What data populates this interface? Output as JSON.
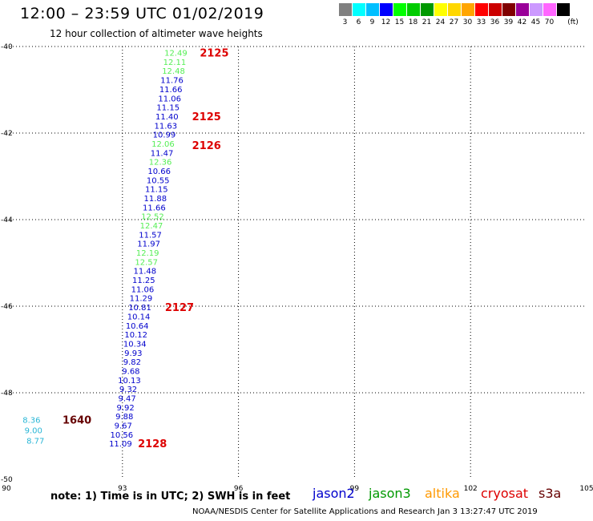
{
  "header": {
    "title": "12:00 – 23:59 UTC 01/02/2019",
    "subtitle": "12 hour collection of altimeter wave heights"
  },
  "color_scale": {
    "unit": "(ft)",
    "bins": [
      {
        "label": "3",
        "color": "#808080"
      },
      {
        "label": "6",
        "color": "#00ffff"
      },
      {
        "label": "9",
        "color": "#00bfff"
      },
      {
        "label": "12",
        "color": "#0000ff"
      },
      {
        "label": "15",
        "color": "#00ff00"
      },
      {
        "label": "18",
        "color": "#00cc00"
      },
      {
        "label": "21",
        "color": "#009900"
      },
      {
        "label": "24",
        "color": "#ffff00"
      },
      {
        "label": "27",
        "color": "#ffd700"
      },
      {
        "label": "30",
        "color": "#ffa500"
      },
      {
        "label": "33",
        "color": "#ff0000"
      },
      {
        "label": "36",
        "color": "#cc0000"
      },
      {
        "label": "39",
        "color": "#800000"
      },
      {
        "label": "42",
        "color": "#990099"
      },
      {
        "label": "45",
        "color": "#cc99ff"
      },
      {
        "label": "70",
        "color": "#ff66ff"
      },
      {
        "label": "",
        "color": "#000000"
      }
    ]
  },
  "map": {
    "lon_ticks": [
      "90",
      "93",
      "96",
      "99",
      "102",
      "105"
    ],
    "lat_ticks": [
      "-40",
      "-42",
      "-44",
      "-46",
      "-48",
      "-50"
    ],
    "lon_range": [
      90,
      105
    ],
    "lat_range": [
      -40,
      -50
    ]
  },
  "satellite_colors": {
    "jason2": "#0000cc",
    "jason3": "#33dd33",
    "cryosat_green": "#55ee55",
    "s3a": "#29b6d6",
    "pass_label": "#dd0000",
    "pass_label_dark": "#660000"
  },
  "observations": [
    {
      "lon": 94.38,
      "lat": -40.14,
      "value": "12.49",
      "color": "#55ee55"
    },
    {
      "lon": 94.35,
      "lat": -40.35,
      "value": "12.11",
      "color": "#55ee55"
    },
    {
      "lon": 94.32,
      "lat": -40.56,
      "value": "12.48",
      "color": "#55ee55"
    },
    {
      "lon": 94.28,
      "lat": -40.77,
      "value": "11.76",
      "color": "#0000cc"
    },
    {
      "lon": 94.25,
      "lat": -40.98,
      "value": "11.66",
      "color": "#0000cc"
    },
    {
      "lon": 94.22,
      "lat": -41.19,
      "value": "11.06",
      "color": "#0000cc"
    },
    {
      "lon": 94.18,
      "lat": -41.4,
      "value": "11.15",
      "color": "#0000cc"
    },
    {
      "lon": 94.15,
      "lat": -41.61,
      "value": "11.40",
      "color": "#0000cc"
    },
    {
      "lon": 94.12,
      "lat": -41.82,
      "value": "11.63",
      "color": "#0000cc"
    },
    {
      "lon": 94.08,
      "lat": -42.03,
      "value": "10.99",
      "color": "#0000cc"
    },
    {
      "lon": 94.05,
      "lat": -42.24,
      "value": "12.06",
      "color": "#55ee55"
    },
    {
      "lon": 94.02,
      "lat": -42.45,
      "value": "11.47",
      "color": "#0000cc"
    },
    {
      "lon": 93.98,
      "lat": -42.66,
      "value": "12.36",
      "color": "#55ee55"
    },
    {
      "lon": 93.95,
      "lat": -42.87,
      "value": "10.66",
      "color": "#0000cc"
    },
    {
      "lon": 93.92,
      "lat": -43.08,
      "value": "10.55",
      "color": "#0000cc"
    },
    {
      "lon": 93.88,
      "lat": -43.29,
      "value": "11.15",
      "color": "#0000cc"
    },
    {
      "lon": 93.85,
      "lat": -43.5,
      "value": "11.88",
      "color": "#0000cc"
    },
    {
      "lon": 93.82,
      "lat": -43.71,
      "value": "11.66",
      "color": "#0000cc"
    },
    {
      "lon": 93.78,
      "lat": -43.92,
      "value": "12.52",
      "color": "#55ee55"
    },
    {
      "lon": 93.75,
      "lat": -44.13,
      "value": "12.47",
      "color": "#55ee55"
    },
    {
      "lon": 93.72,
      "lat": -44.34,
      "value": "11.57",
      "color": "#0000cc"
    },
    {
      "lon": 93.68,
      "lat": -44.55,
      "value": "11.97",
      "color": "#0000cc"
    },
    {
      "lon": 93.65,
      "lat": -44.76,
      "value": "12.19",
      "color": "#55ee55"
    },
    {
      "lon": 93.62,
      "lat": -44.97,
      "value": "12.57",
      "color": "#55ee55"
    },
    {
      "lon": 93.58,
      "lat": -45.18,
      "value": "11.48",
      "color": "#0000cc"
    },
    {
      "lon": 93.55,
      "lat": -45.39,
      "value": "11.25",
      "color": "#0000cc"
    },
    {
      "lon": 93.52,
      "lat": -45.6,
      "value": "11.06",
      "color": "#0000cc"
    },
    {
      "lon": 93.48,
      "lat": -45.81,
      "value": "11.29",
      "color": "#0000cc"
    },
    {
      "lon": 93.45,
      "lat": -46.02,
      "value": "10.81",
      "color": "#0000cc"
    },
    {
      "lon": 93.42,
      "lat": -46.23,
      "value": "10.14",
      "color": "#0000cc"
    },
    {
      "lon": 93.38,
      "lat": -46.44,
      "value": "10.64",
      "color": "#0000cc"
    },
    {
      "lon": 93.35,
      "lat": -46.65,
      "value": "10.12",
      "color": "#0000cc"
    },
    {
      "lon": 93.32,
      "lat": -46.86,
      "value": "10.34",
      "color": "#0000cc"
    },
    {
      "lon": 93.28,
      "lat": -47.07,
      "value": "9.93",
      "color": "#0000cc"
    },
    {
      "lon": 93.25,
      "lat": -47.28,
      "value": "9.82",
      "color": "#0000cc"
    },
    {
      "lon": 93.22,
      "lat": -47.49,
      "value": "9.68",
      "color": "#0000cc"
    },
    {
      "lon": 93.18,
      "lat": -47.7,
      "value": "10.13",
      "color": "#0000cc"
    },
    {
      "lon": 93.15,
      "lat": -47.91,
      "value": "9.32",
      "color": "#0000cc"
    },
    {
      "lon": 93.12,
      "lat": -48.12,
      "value": "9.47",
      "color": "#0000cc"
    },
    {
      "lon": 93.08,
      "lat": -48.33,
      "value": "9.92",
      "color": "#0000cc"
    },
    {
      "lon": 93.05,
      "lat": -48.54,
      "value": "9.88",
      "color": "#0000cc"
    },
    {
      "lon": 93.02,
      "lat": -48.75,
      "value": "9.67",
      "color": "#0000cc"
    },
    {
      "lon": 92.98,
      "lat": -48.96,
      "value": "10.56",
      "color": "#0000cc"
    },
    {
      "lon": 92.95,
      "lat": -49.17,
      "value": "11.09",
      "color": "#0000cc"
    },
    {
      "lon": 90.65,
      "lat": -48.62,
      "value": "8.36",
      "color": "#29b6d6"
    },
    {
      "lon": 90.7,
      "lat": -48.86,
      "value": "9.00",
      "color": "#29b6d6"
    },
    {
      "lon": 90.75,
      "lat": -49.1,
      "value": "8.77",
      "color": "#29b6d6"
    }
  ],
  "pass_labels": [
    {
      "lon": 95.0,
      "lat": -40.14,
      "text": "2125",
      "color": "#dd0000"
    },
    {
      "lon": 94.8,
      "lat": -41.61,
      "text": "2125",
      "color": "#dd0000"
    },
    {
      "lon": 94.8,
      "lat": -42.28,
      "text": "2126",
      "color": "#dd0000"
    },
    {
      "lon": 94.1,
      "lat": -46.02,
      "text": "2127",
      "color": "#dd0000"
    },
    {
      "lon": 93.4,
      "lat": -49.17,
      "text": "2128",
      "color": "#dd0000"
    },
    {
      "lon": 91.45,
      "lat": -48.62,
      "text": "1640",
      "color": "#660000"
    }
  ],
  "note": "note:  1) Time is in UTC; 2) SWH is in feet",
  "legend": [
    {
      "name": "jason2",
      "color": "#0000cc"
    },
    {
      "name": "jason3",
      "color": "#009900"
    },
    {
      "name": "altika",
      "color": "#ff9900"
    },
    {
      "name": "cryosat",
      "color": "#dd0000"
    },
    {
      "name": "s3a",
      "color": "#660000"
    }
  ],
  "footer": "NOAA/NESDIS Center for Satellite Applications and Research    Jan  3 13:27:47 UTC 2019"
}
